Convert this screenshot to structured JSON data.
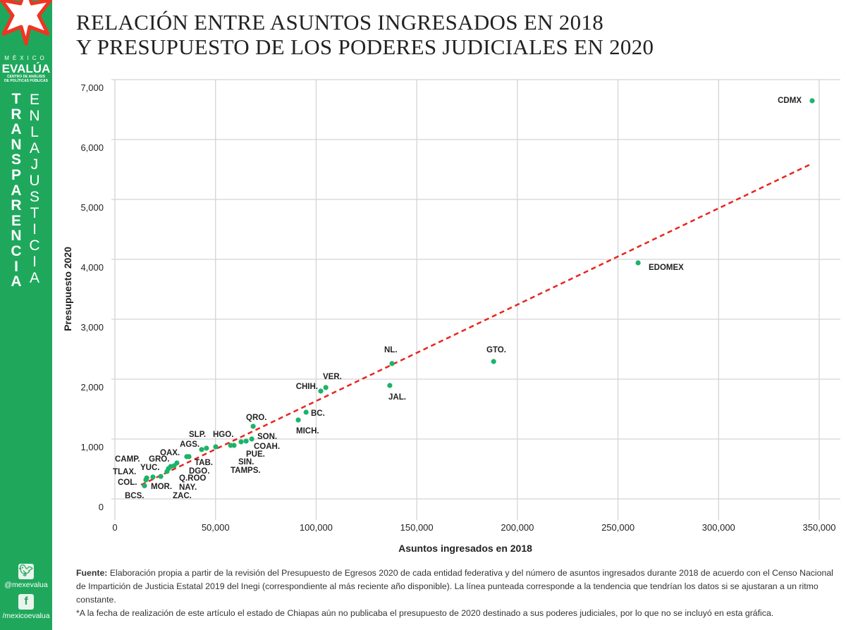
{
  "title": {
    "line1": "RELACIÓN ENTRE ASUNTOS INGRESADOS EN 2018",
    "line2": "Y PRESUPUESTO DE LOS PODERES JUDICIALES EN 2020"
  },
  "sidebar": {
    "brand_top": "MÉXICO",
    "brand_name": "EVALÚA",
    "brand_sub1": "CENTRO DE ANÁLISIS",
    "brand_sub2": "DE POLÍTICAS PÚBLICAS",
    "vertical_1": "TRANSPARENCIA",
    "vertical_2": "ENLAJUSTICIA",
    "twitter_icon": "twitter-icon",
    "twitter": "@mexevalua",
    "facebook_icon": "facebook-icon",
    "facebook": "/mexicoevalua",
    "color": "#1fa85c"
  },
  "chart_data": {
    "type": "scatter",
    "xlabel": "Asuntos ingresados en 2018",
    "ylabel": "Presupuesto 2020",
    "xlim": [
      0,
      350000
    ],
    "ylim": [
      0,
      7000
    ],
    "xticks": [
      "0",
      "50,000",
      "100,000",
      "150,000",
      "200,000",
      "250,000",
      "300,000",
      "350,000"
    ],
    "xtick_values": [
      0,
      50000,
      100000,
      150000,
      200000,
      250000,
      300000,
      350000
    ],
    "yticks": [
      "0",
      "1,000",
      "2,000",
      "3,000",
      "4,000",
      "5,000",
      "6,000",
      "7,000"
    ],
    "ytick_values": [
      0,
      1000,
      2000,
      3000,
      4000,
      5000,
      6000,
      7000
    ],
    "grid": true,
    "point_color": "#1db36a",
    "trend_color": "#e8251f",
    "trendline": {
      "x": [
        13000,
        346500
      ],
      "y": [
        235,
        5600
      ]
    },
    "points": [
      {
        "label": "BCS.",
        "x": 14700,
        "y": 220
      },
      {
        "label": "COL.",
        "x": 15400,
        "y": 318
      },
      {
        "label": "TLAX.",
        "x": 15800,
        "y": 350
      },
      {
        "label": "YUC.",
        "x": 18900,
        "y": 365
      },
      {
        "label": "",
        "x": 22800,
        "y": 376
      },
      {
        "label": "MOR.",
        "x": 25900,
        "y": 459
      },
      {
        "label": "",
        "x": 26600,
        "y": 506
      },
      {
        "label": "",
        "x": 27700,
        "y": 541
      },
      {
        "label": "",
        "x": 29400,
        "y": 553
      },
      {
        "label": "",
        "x": 30800,
        "y": 600
      },
      {
        "label": "",
        "x": 35700,
        "y": 706
      },
      {
        "label": "",
        "x": 36800,
        "y": 706
      },
      {
        "label": "",
        "x": 43100,
        "y": 824
      },
      {
        "label": "",
        "x": 45500,
        "y": 847
      },
      {
        "label": "",
        "x": 50100,
        "y": 870
      },
      {
        "label": "",
        "x": 57500,
        "y": 894
      },
      {
        "label": "",
        "x": 59200,
        "y": 894
      },
      {
        "label": "",
        "x": 62700,
        "y": 953
      },
      {
        "label": "",
        "x": 65200,
        "y": 965
      },
      {
        "label": "",
        "x": 68000,
        "y": 1000
      },
      {
        "label": "QRO.",
        "x": 68700,
        "y": 1212
      },
      {
        "label": "MICH.",
        "x": 91100,
        "y": 1318
      },
      {
        "label": "BC.",
        "x": 95000,
        "y": 1447
      },
      {
        "label": "CHIH.",
        "x": 102300,
        "y": 1800
      },
      {
        "label": "VER.",
        "x": 104800,
        "y": 1860
      },
      {
        "label": "JAL.",
        "x": 136600,
        "y": 1894
      },
      {
        "label": "NL.",
        "x": 137700,
        "y": 2260
      },
      {
        "label": "GTO.",
        "x": 188200,
        "y": 2294
      },
      {
        "label": "EDOMEX",
        "x": 260000,
        "y": 3941
      },
      {
        "label": "CDMX",
        "x": 346500,
        "y": 6647
      }
    ],
    "cluster_labels": [
      "SLP.",
      "HGO.",
      "AGS.",
      "OAX.",
      "CAMP.",
      "GRO.",
      "TAB.",
      "DGO.",
      "Q.ROO",
      "NAY.",
      "ZAC.",
      "SON.",
      "COAH.",
      "PUE.",
      "SIN.",
      "TAMPS."
    ]
  },
  "notes": {
    "source_label": "Fuente:",
    "source_text": " Elaboración propia a partir de la revisión del Presupuesto de Egresos 2020 de cada entidad federativa y del número de asuntos ingresados durante 2018 de acuerdo con el Censo Nacional de Impartición de Justicia Estatal 2019 del Inegi (correspondiente al más reciente año disponible). La línea punteada corresponde a la tendencia que tendrían los datos si se ajustaran a un ritmo constante.",
    "footnote": "*A la fecha de realización de este artículo el estado de Chiapas aún no publicaba el presupuesto de 2020 destinado a sus poderes judiciales, por lo que no se incluyó en esta gráfica."
  }
}
